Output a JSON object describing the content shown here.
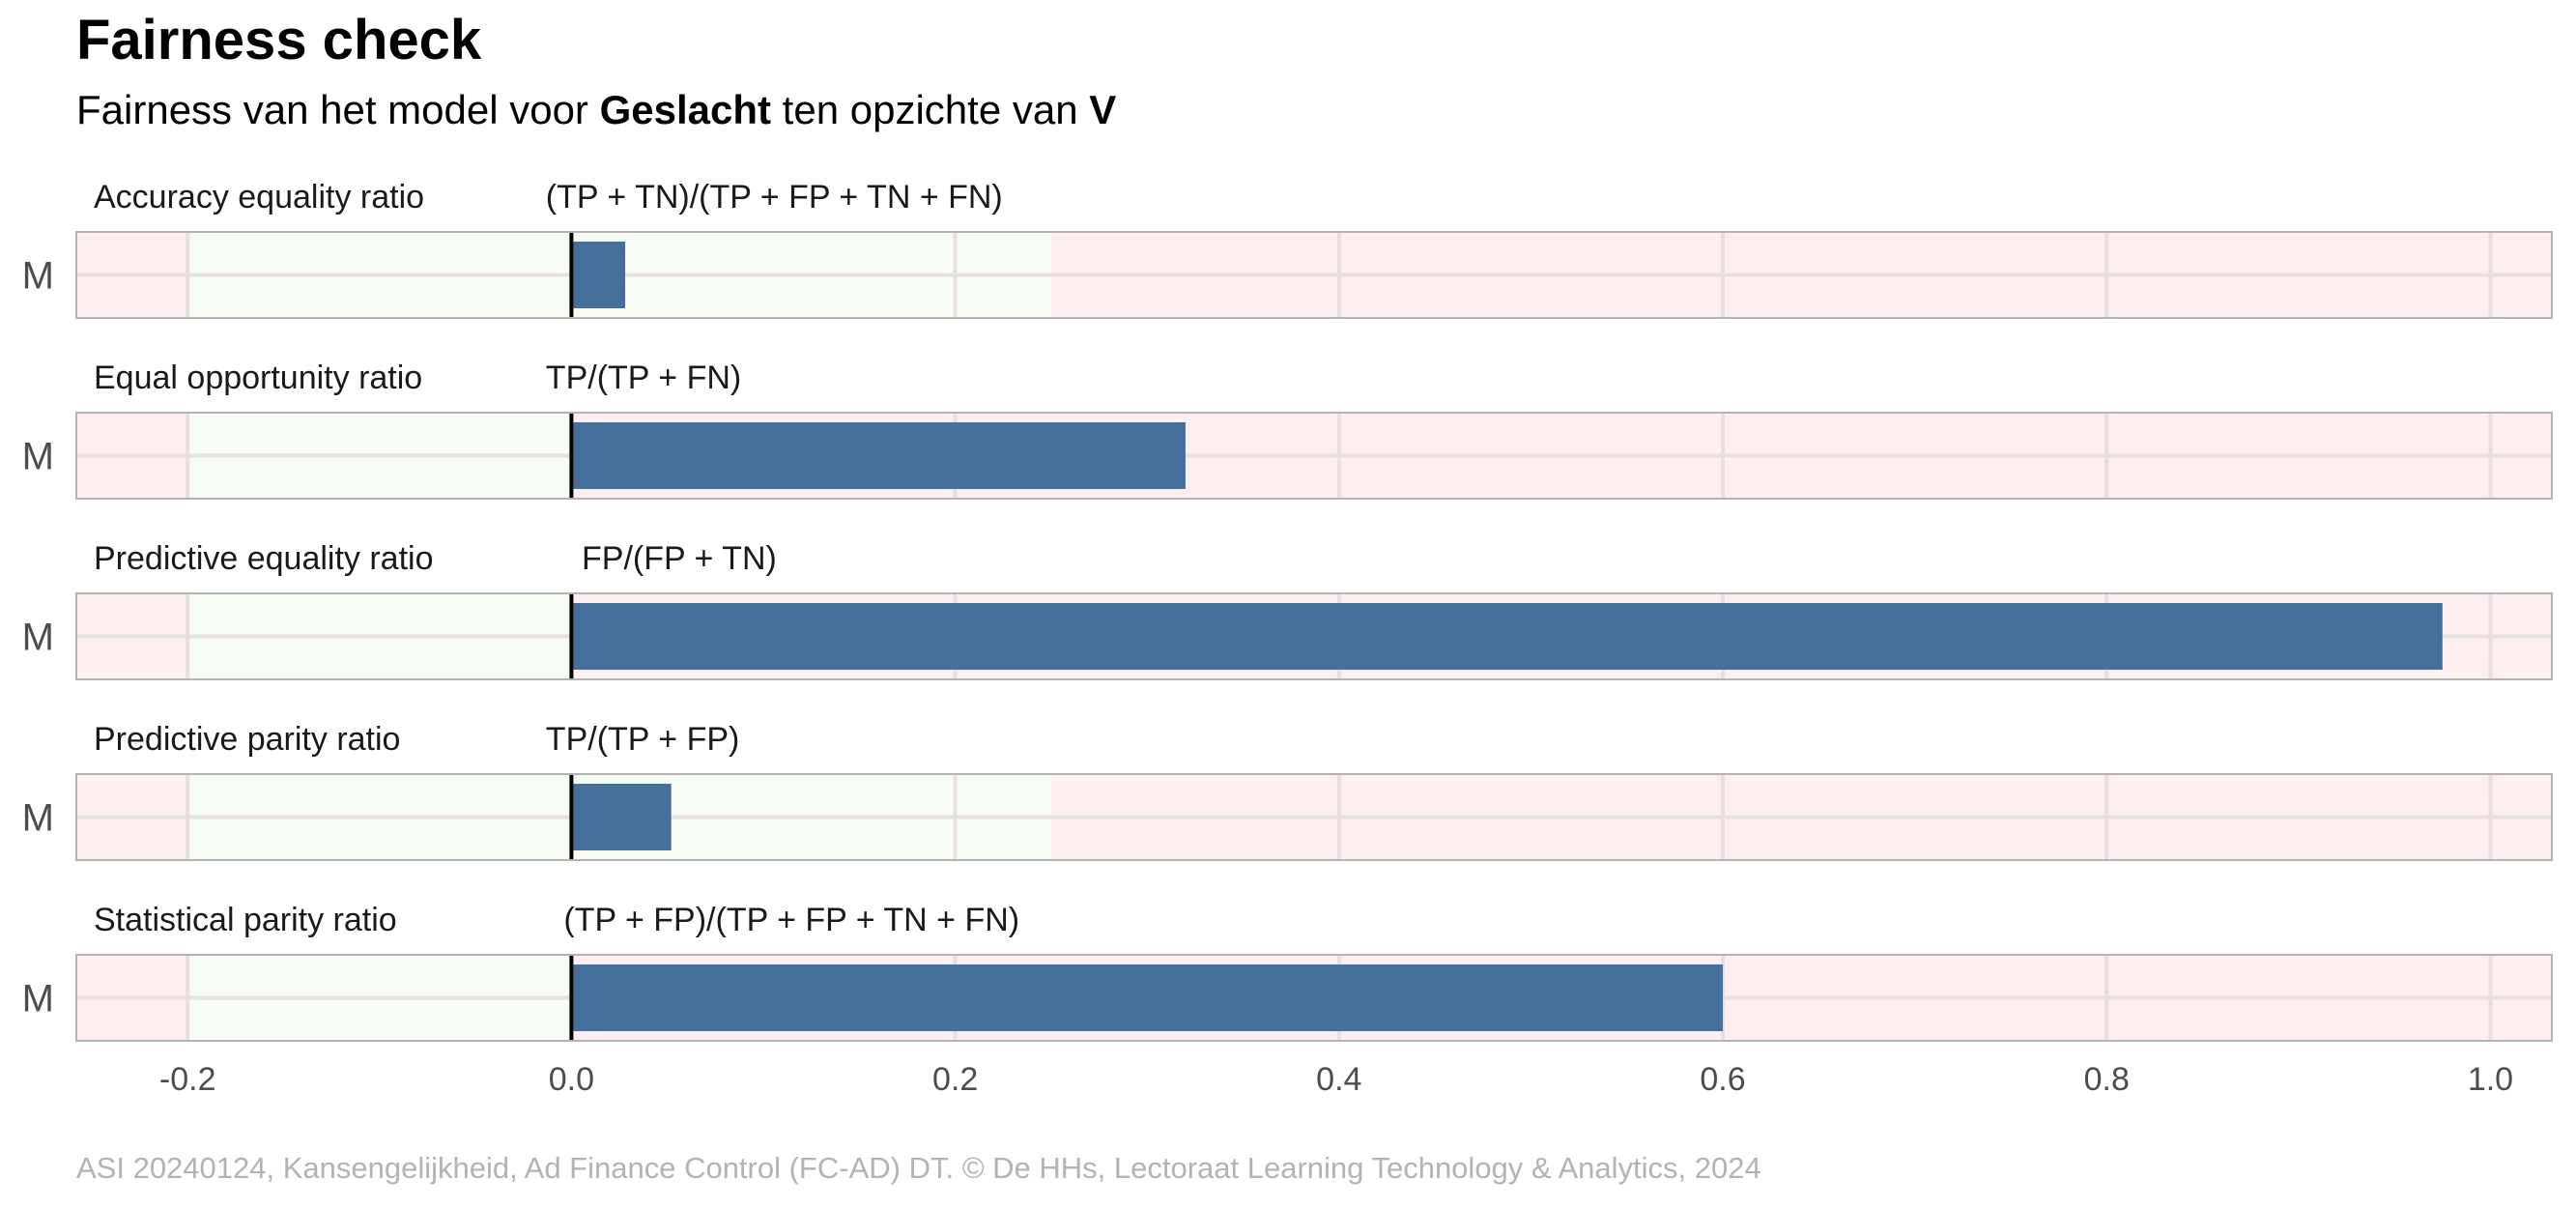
{
  "header": {
    "title": "Fairness check",
    "subtitle_prefix": "Fairness van het model voor ",
    "subtitle_variable": "Geslacht",
    "subtitle_middle": " ten opzichte van ",
    "subtitle_reference": "V"
  },
  "caption": "ASI 20240124, Kansengelijkheid, Ad Finance Control (FC-AD) DT. © De HHs, Lectoraat Learning Technology & Analytics, 2024",
  "colors": {
    "bar": "#46709c",
    "fair_zone": "#f6fbf4",
    "unfair_zone": "#fdeef0",
    "panel_border": "#b3b3b3",
    "grid": "#e6e0e0",
    "zero_line": "#000000",
    "tick_text": "#4d4d4d",
    "caption_text": "#b3b3b3"
  },
  "chart_data": {
    "type": "bar",
    "orientation": "horizontal",
    "facet_layout": "stacked panels, one per metric",
    "xlim": [
      -0.258,
      1.032
    ],
    "x_ticks": [
      -0.2,
      0.0,
      0.2,
      0.4,
      0.6,
      0.8,
      1.0
    ],
    "x_tick_labels": [
      "-0.2",
      "0.0",
      "0.2",
      "0.4",
      "0.6",
      "0.8",
      "1.0"
    ],
    "grid": true,
    "fair_zone": [
      -0.2,
      0.25
    ],
    "reference_line": 0.0,
    "category_label": "M",
    "panels": [
      {
        "metric": "Accuracy equality ratio",
        "formula": "(TP + TN)/(TP + FP + TN + FN)",
        "category": "M",
        "value": 0.028,
        "fair_zone": [
          -0.2,
          0.25
        ]
      },
      {
        "metric": "Equal opportunity ratio",
        "formula": "TP/(TP + FN)",
        "category": "M",
        "value": 0.32,
        "fair_zone": [
          -0.2,
          0.0
        ]
      },
      {
        "metric": "Predictive equality ratio",
        "formula": "FP/(FP + TN)",
        "category": "M",
        "value": 0.975,
        "fair_zone": [
          -0.2,
          0.0
        ]
      },
      {
        "metric": "Predictive parity ratio",
        "formula": "TP/(TP + FP)",
        "category": "M",
        "value": 0.052,
        "fair_zone": [
          -0.2,
          0.25
        ]
      },
      {
        "metric": "Statistical parity ratio",
        "formula": "(TP + FP)/(TP + FP + TN + FN)",
        "category": "M",
        "value": 0.6,
        "fair_zone": [
          -0.2,
          0.0
        ]
      }
    ]
  }
}
